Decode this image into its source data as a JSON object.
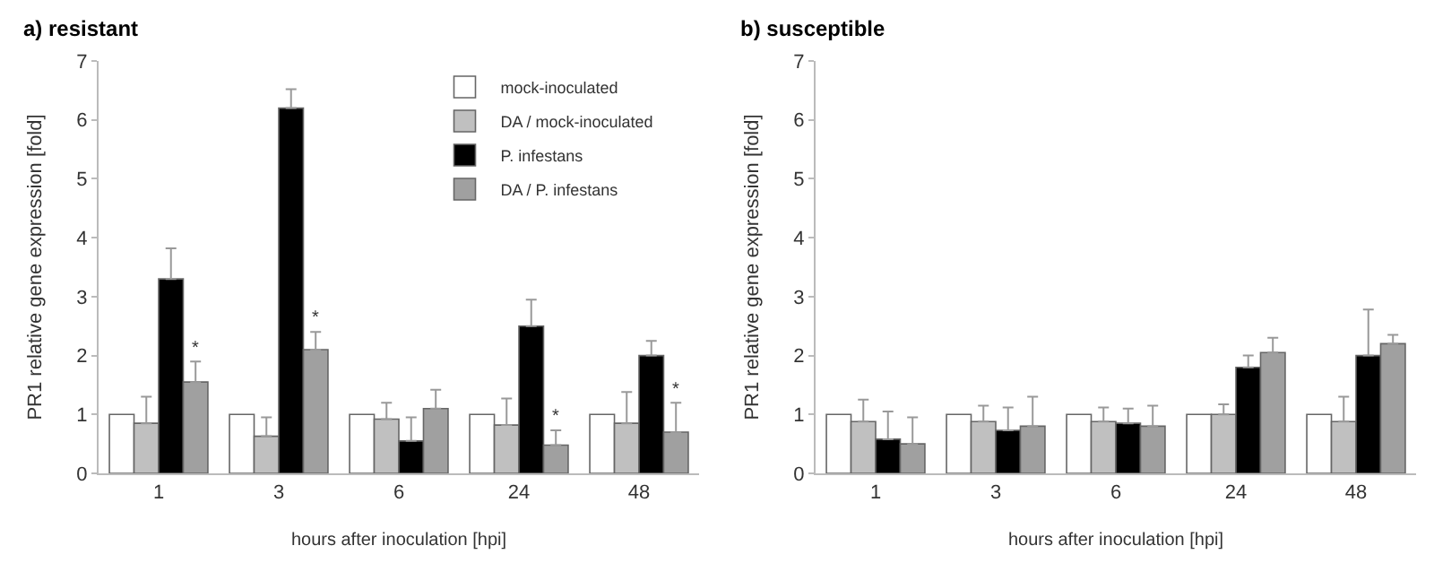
{
  "chart_data": [
    {
      "type": "bar",
      "title": "a) resistant",
      "xlabel": "hours after inoculation [hpi]",
      "ylabel": "PR1 relative gene expression [fold]",
      "categories": [
        "1",
        "3",
        "6",
        "24",
        "48"
      ],
      "series": [
        {
          "name": "mock-inoculated",
          "color": "#ffffff",
          "values": [
            1,
            1,
            1,
            1,
            1
          ]
        },
        {
          "name": "DA / mock-inoculated",
          "color": "#c0c0c0",
          "values": [
            0.85,
            0.63,
            0.92,
            0.82,
            0.85
          ],
          "errors": [
            [
              0.85,
              1.3
            ],
            [
              0.63,
              0.95
            ],
            [
              0.92,
              1.2
            ],
            [
              0.82,
              1.27
            ],
            [
              0.85,
              1.38
            ]
          ]
        },
        {
          "name": "P. infestans",
          "color": "#000000",
          "values": [
            3.3,
            6.2,
            0.55,
            2.5,
            2.0
          ],
          "errors": [
            [
              3.3,
              3.82
            ],
            [
              6.2,
              6.52
            ],
            [
              0.55,
              0.95
            ],
            [
              2.5,
              2.95
            ],
            [
              2.0,
              2.25
            ]
          ]
        },
        {
          "name": "DA / P. infestans",
          "color": "#a0a0a0",
          "values": [
            1.55,
            2.1,
            1.1,
            0.48,
            0.7
          ],
          "errors": [
            [
              1.55,
              1.9
            ],
            [
              2.1,
              2.4
            ],
            [
              1.1,
              1.42
            ],
            [
              0.48,
              0.73
            ],
            [
              0.7,
              1.2
            ]
          ]
        }
      ],
      "annotations": [
        {
          "text": "*",
          "x": "1",
          "y": 1.9
        },
        {
          "text": "*",
          "x": "3",
          "y": 2.4
        },
        {
          "text": "*",
          "x": "24",
          "y": 0.73
        },
        {
          "text": "*",
          "x": "48",
          "y": 1.2
        }
      ],
      "ylim": [
        0,
        7
      ],
      "yticks": [
        0,
        1,
        2,
        3,
        4,
        5,
        6,
        7
      ],
      "grid": false,
      "legend": "top right"
    },
    {
      "type": "bar",
      "title": "b) susceptible",
      "xlabel": "hours after inoculation [hpi]",
      "ylabel": "PR1 relative gene expression [fold]",
      "categories": [
        "1",
        "3",
        "6",
        "24",
        "48"
      ],
      "series": [
        {
          "color": "#ffffff",
          "values": [
            1,
            1,
            1,
            1,
            1
          ]
        },
        {
          "color": "#c0c0c0",
          "values": [
            0.88,
            0.88,
            0.88,
            1.0,
            0.88
          ],
          "errors": [
            [
              0.88,
              1.25
            ],
            [
              0.88,
              1.15
            ],
            [
              0.88,
              1.12
            ],
            [
              1.0,
              1.17
            ],
            [
              0.88,
              1.3
            ]
          ]
        },
        {
          "color": "#000000",
          "values": [
            0.58,
            0.73,
            0.85,
            1.8,
            2.0
          ],
          "errors": [
            [
              0.58,
              1.05
            ],
            [
              0.73,
              1.12
            ],
            [
              0.85,
              1.1
            ],
            [
              1.8,
              2.0
            ],
            [
              2.0,
              2.78
            ]
          ]
        },
        {
          "color": "#a0a0a0",
          "values": [
            0.5,
            0.8,
            0.8,
            2.05,
            2.2
          ],
          "errors": [
            [
              0.5,
              0.95
            ],
            [
              0.8,
              1.3
            ],
            [
              0.8,
              1.15
            ],
            [
              2.05,
              2.3
            ],
            [
              2.2,
              2.35
            ]
          ]
        }
      ],
      "ylim": [
        0,
        7
      ],
      "yticks": [
        0,
        1,
        2,
        3,
        4,
        5,
        6,
        7
      ],
      "grid": false,
      "legend": false
    }
  ]
}
